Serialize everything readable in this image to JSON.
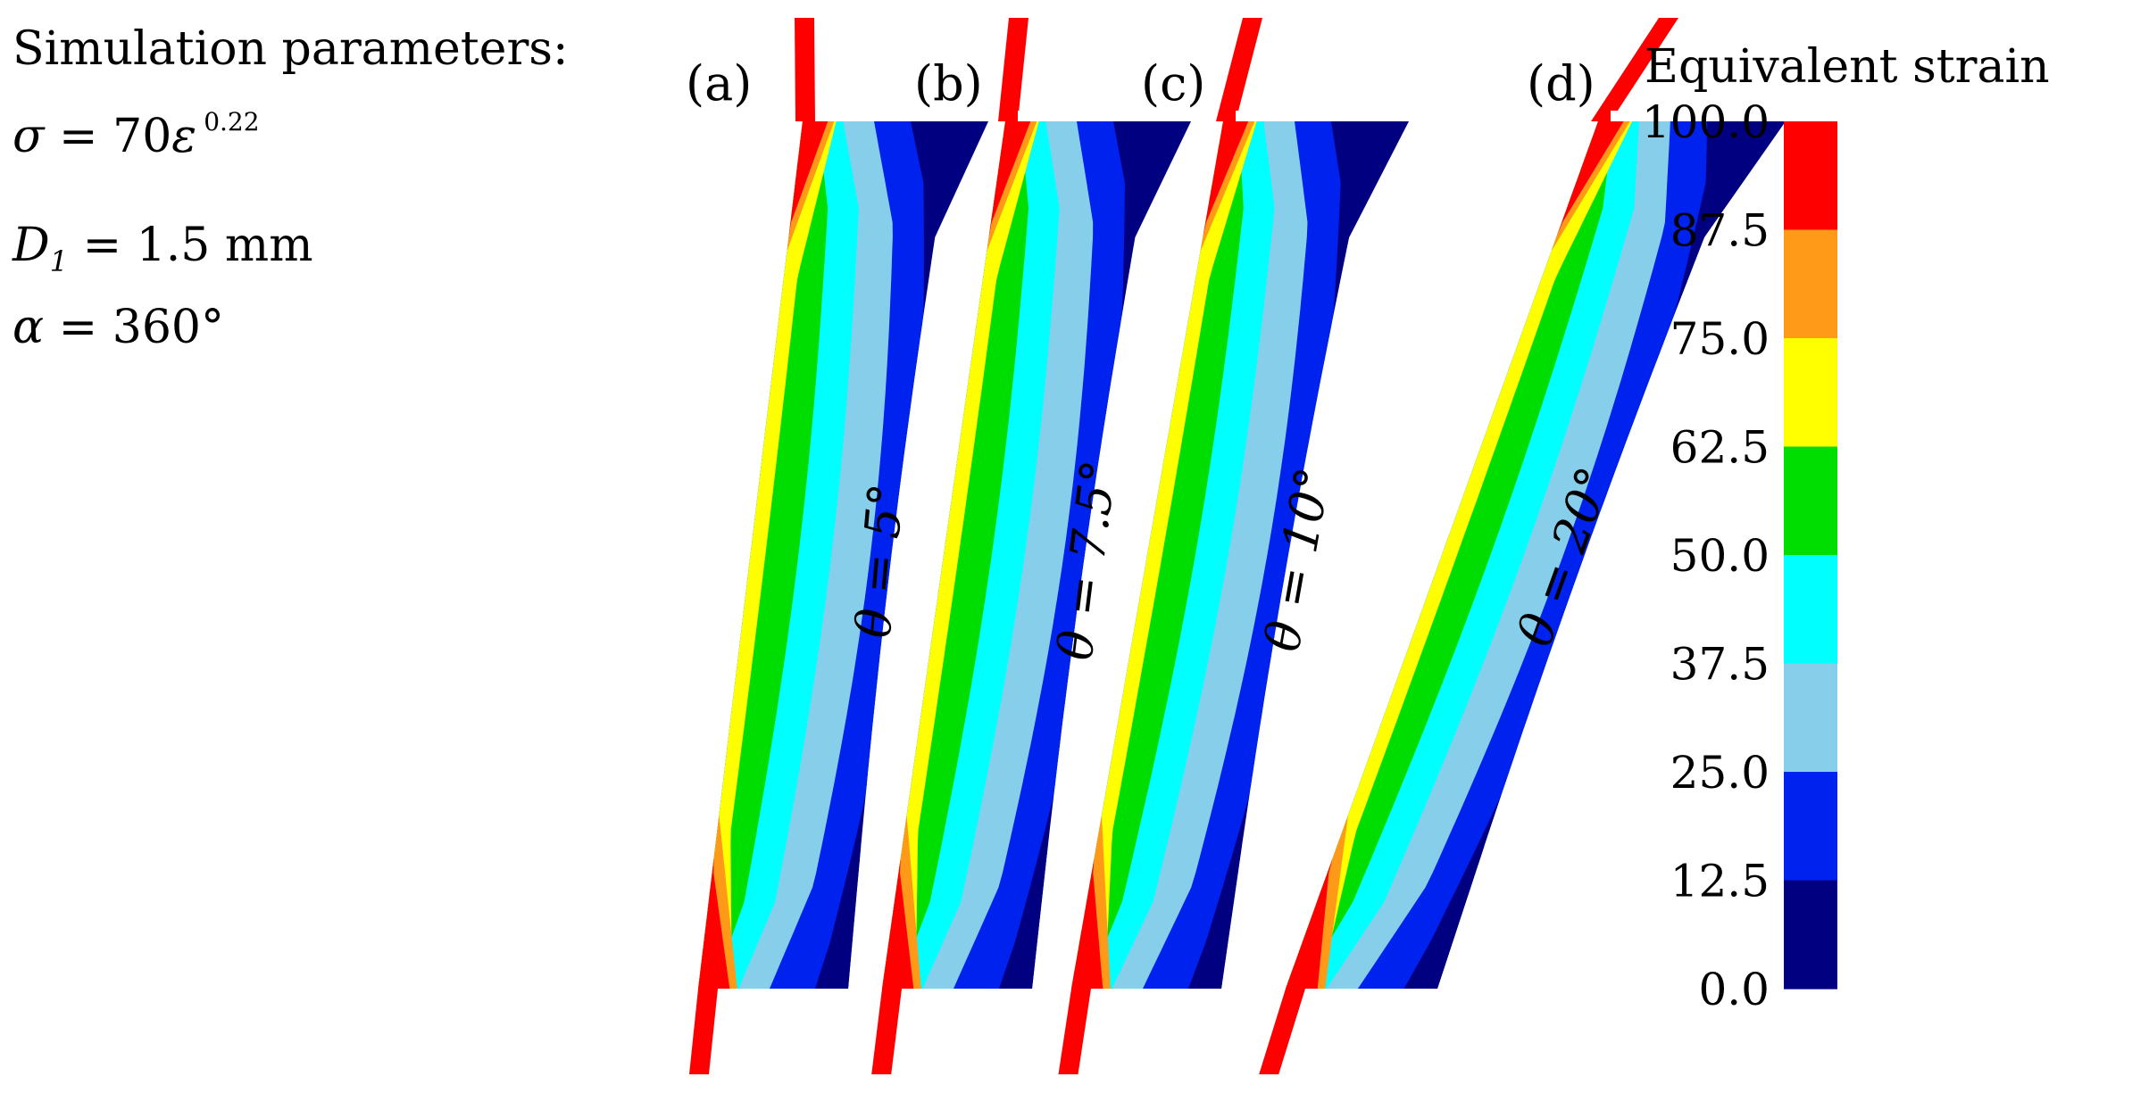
{
  "params": {
    "heading": "Simulation parameters:",
    "sigma_symbol": "σ",
    "sigma_eq": " = 70",
    "epsilon_symbol": "ε",
    "exponent": "0.22",
    "d_symbol": "D",
    "d_sub": "1",
    "d_value": " = 1.5 mm",
    "alpha_symbol": "α",
    "alpha_value": " = 360°"
  },
  "panels": [
    {
      "id": "(a)",
      "theta_label": "θ = 5°",
      "angle_deg": 5
    },
    {
      "id": "(b)",
      "theta_label": "θ = 7.5°",
      "angle_deg": 7.5
    },
    {
      "id": "(c)",
      "theta_label": "θ = 10°",
      "angle_deg": 10
    },
    {
      "id": "(d)",
      "theta_label": "θ = 20°",
      "angle_deg": 20
    }
  ],
  "legend": {
    "title": "Equivalent strain",
    "ticks": [
      "100.0",
      "87.5",
      "75.0",
      "62.5",
      "50.0",
      "37.5",
      "25.0",
      "12.5",
      "0.0"
    ],
    "colors_top_to_bottom": [
      "#ff0000",
      "#ff9a18",
      "#ffff00",
      "#00dd00",
      "#00ffff",
      "#87ceeb",
      "#0022ee",
      "#000080"
    ]
  },
  "colors": {
    "red": "#ff0000",
    "orange": "#ff9a18",
    "yellow": "#ffff00",
    "green": "#00dd00",
    "cyan": "#00ffff",
    "lightblue": "#87ceeb",
    "blue": "#0022ee",
    "navy": "#000080"
  }
}
